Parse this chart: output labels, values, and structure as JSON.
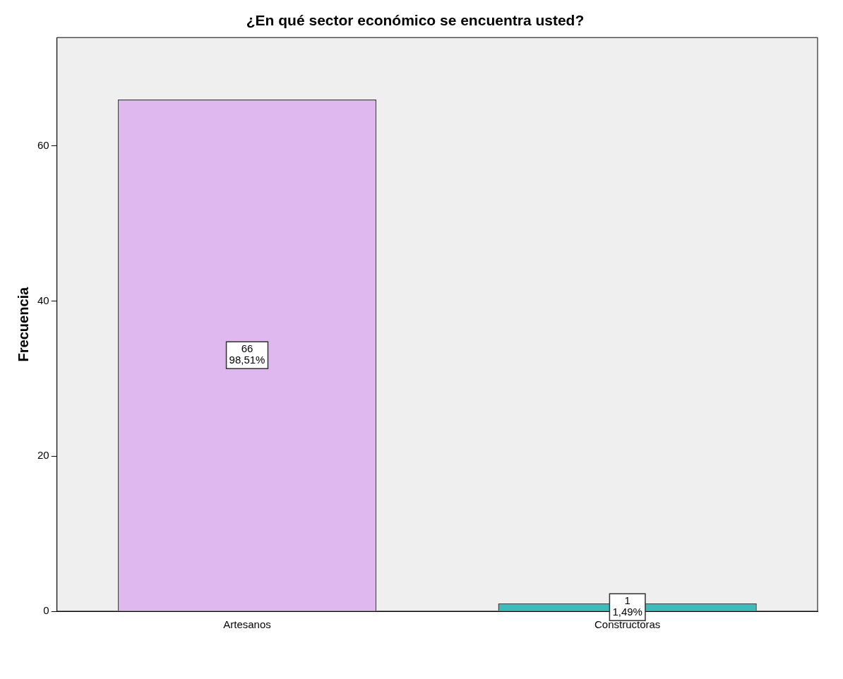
{
  "chart_data": {
    "type": "bar",
    "title": "¿En qué sector económico se encuentra usted?",
    "ylabel": "Frecuencia",
    "categories": [
      "Artesanos",
      "Constructoras"
    ],
    "values": [
      66,
      1
    ],
    "colors": [
      "#dfb8f0",
      "#3cbcbc"
    ],
    "value_labels": [
      "66\n98,51%",
      "1\n1,49%"
    ],
    "ylim": [
      0,
      74
    ],
    "yticks": [
      0,
      20,
      40,
      60
    ],
    "grid": false,
    "legend": false
  }
}
